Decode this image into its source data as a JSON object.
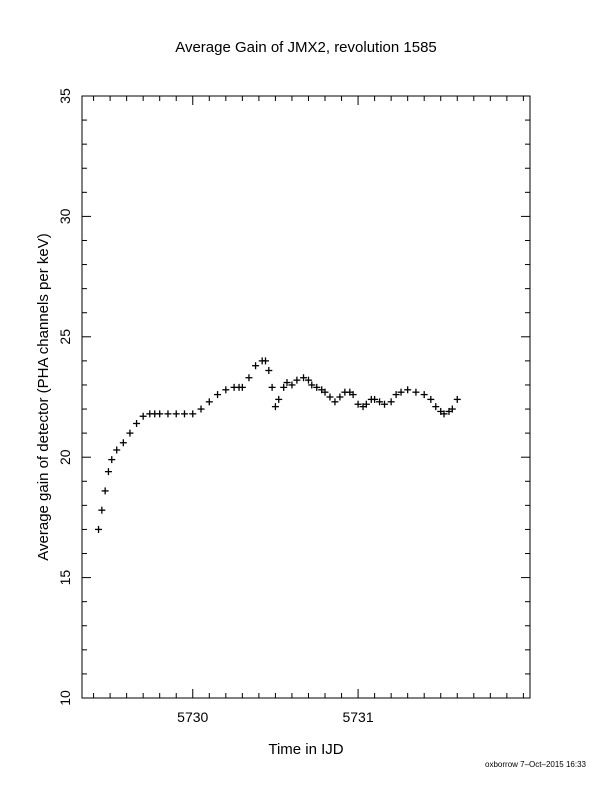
{
  "chart_data": {
    "type": "scatter",
    "title": "Average Gain of JMX2, revolution 1585",
    "xlabel": "Time in IJD",
    "ylabel": "Average gain of detector (PHA channels per keV)",
    "xlim": [
      5729.33,
      5732.04
    ],
    "ylim": [
      10,
      35
    ],
    "xticks": [
      5730,
      5731
    ],
    "yticks": [
      10,
      15,
      20,
      25,
      30,
      35
    ],
    "grid": false,
    "marker": "+",
    "series": [
      {
        "x": [
          5729.43,
          5729.45,
          5729.47,
          5729.49,
          5729.51,
          5729.54,
          5729.58,
          5729.62,
          5729.66,
          5729.7,
          5729.74,
          5729.77,
          5729.8,
          5729.85,
          5729.9,
          5729.95,
          5730.0,
          5730.05,
          5730.1,
          5730.15,
          5730.2,
          5730.25,
          5730.28,
          5730.3,
          5730.34,
          5730.38,
          5730.42,
          5730.44,
          5730.46,
          5730.48,
          5730.5,
          5730.52,
          5730.55,
          5730.57,
          5730.6,
          5730.63,
          5730.67,
          5730.7,
          5730.72,
          5730.75,
          5730.78,
          5730.8,
          5730.83,
          5730.86,
          5730.89,
          5730.92,
          5730.95,
          5730.97,
          5731.0,
          5731.03,
          5731.05,
          5731.08,
          5731.1,
          5731.13,
          5731.16,
          5731.2,
          5731.23,
          5731.26,
          5731.3,
          5731.35,
          5731.4,
          5731.44,
          5731.47,
          5731.5,
          5731.52,
          5731.55,
          5731.57,
          5731.6
        ],
        "y": [
          17.0,
          17.8,
          18.6,
          19.4,
          19.9,
          20.3,
          20.6,
          21.0,
          21.4,
          21.7,
          21.8,
          21.8,
          21.8,
          21.8,
          21.8,
          21.8,
          21.8,
          22.0,
          22.3,
          22.6,
          22.8,
          22.9,
          22.9,
          22.9,
          23.3,
          23.8,
          24.0,
          24.0,
          23.6,
          22.9,
          22.1,
          22.4,
          22.9,
          23.1,
          23.0,
          23.2,
          23.3,
          23.2,
          23.0,
          22.9,
          22.8,
          22.7,
          22.5,
          22.3,
          22.5,
          22.7,
          22.7,
          22.6,
          22.2,
          22.1,
          22.2,
          22.4,
          22.4,
          22.3,
          22.2,
          22.3,
          22.6,
          22.7,
          22.8,
          22.7,
          22.6,
          22.4,
          22.1,
          21.9,
          21.8,
          21.9,
          22.0,
          22.4
        ]
      }
    ]
  },
  "footer_stamp": "oxborrow  7–Oct–2015 16:33"
}
